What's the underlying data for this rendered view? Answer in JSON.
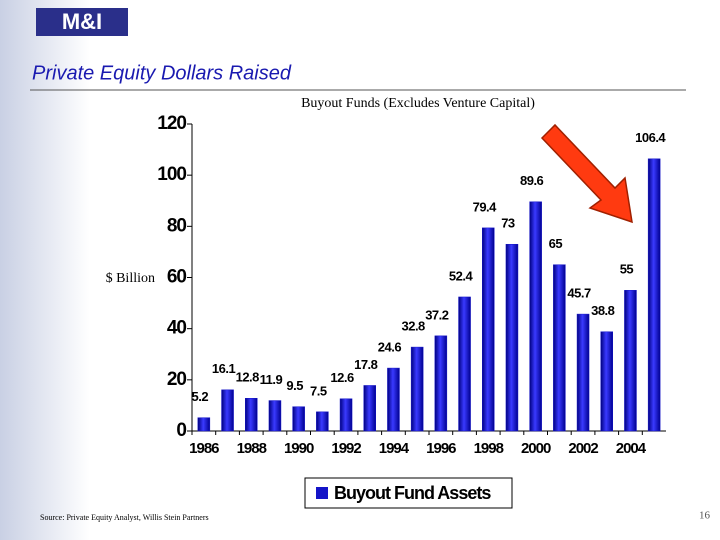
{
  "logo": "M&I",
  "title": "Private Equity Dollars Raised",
  "source": "Source: Private Equity Analyst, Willis Stein Partners",
  "page_number": "16",
  "chart_data": {
    "type": "bar",
    "title": "Buyout Funds (Excludes Venture Capital)",
    "y_label": "$ Billion",
    "categories": [
      "1986",
      null,
      "1988",
      null,
      "1990",
      null,
      "1992",
      null,
      "1994",
      null,
      "1996",
      null,
      "1998",
      null,
      "2000",
      null,
      "2002",
      null,
      "2004",
      null
    ],
    "series": [
      {
        "name": "Buyout Fund Assets",
        "color": "#1414c8",
        "values": [
          5.2,
          16.1,
          12.8,
          11.9,
          9.5,
          7.5,
          12.6,
          17.8,
          24.6,
          32.8,
          37.2,
          52.4,
          79.4,
          73,
          89.6,
          65,
          45.7,
          38.8,
          55,
          106.4
        ]
      }
    ],
    "ylim": [
      0,
      120
    ],
    "yticks": [
      0,
      20,
      40,
      60,
      80,
      100,
      120
    ],
    "grid": false,
    "legend": "bottom"
  }
}
